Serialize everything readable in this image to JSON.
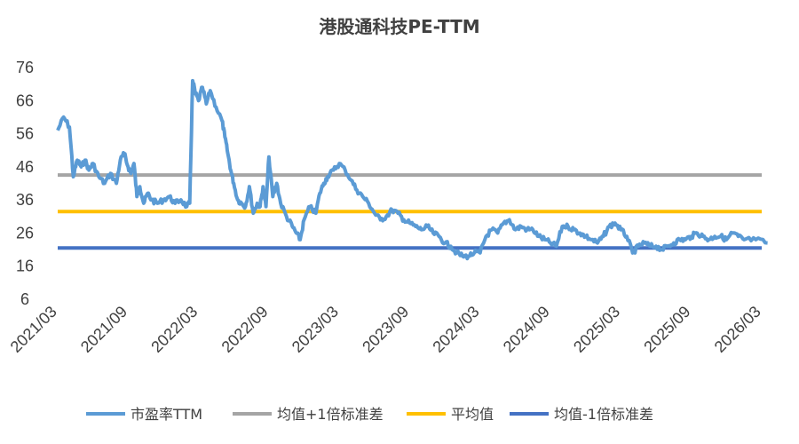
{
  "chart_data": {
    "type": "line",
    "title": "港股通科技PE-TTM",
    "xlabel": "",
    "ylabel": "",
    "ylim": [
      6,
      76
    ],
    "yticks": [
      "6",
      "16",
      "26",
      "36",
      "46",
      "56",
      "66",
      "76"
    ],
    "xlim": [
      "2021/03",
      "2026/03"
    ],
    "xticks": [
      "2021/03",
      "2021/09",
      "2022/03",
      "2022/09",
      "2023/03",
      "2023/09",
      "2024/03",
      "2024/09",
      "2025/03",
      "2025/09",
      "2026/03"
    ],
    "grid": false,
    "legend_position": "bottom",
    "series": [
      {
        "name": "市盈率TTM",
        "color": "#5b9bd5",
        "style": "line",
        "points": [
          [
            "2021/03",
            57
          ],
          [
            "2021/03",
            61
          ],
          [
            "2021/04",
            58
          ],
          [
            "2021/04",
            43
          ],
          [
            "2021/04",
            48
          ],
          [
            "2021/05",
            46
          ],
          [
            "2021/05",
            48
          ],
          [
            "2021/05",
            45
          ],
          [
            "2021/06",
            47
          ],
          [
            "2021/06",
            43
          ],
          [
            "2021/07",
            41
          ],
          [
            "2021/07",
            44
          ],
          [
            "2021/08",
            41
          ],
          [
            "2021/08",
            48
          ],
          [
            "2021/08",
            50
          ],
          [
            "2021/09",
            46
          ],
          [
            "2021/09",
            44
          ],
          [
            "2021/09",
            47
          ],
          [
            "2021/09",
            37
          ],
          [
            "2021/10",
            40
          ],
          [
            "2021/10",
            35
          ],
          [
            "2021/10",
            38
          ],
          [
            "2021/11",
            36
          ],
          [
            "2021/11",
            35
          ],
          [
            "2021/12",
            36
          ],
          [
            "2021/12",
            37
          ],
          [
            "2022/01",
            35
          ],
          [
            "2022/01",
            36
          ],
          [
            "2022/02",
            34
          ],
          [
            "2022/02",
            35
          ],
          [
            "2022/02",
            72
          ],
          [
            "2022/02",
            68
          ],
          [
            "2022/03",
            66
          ],
          [
            "2022/03",
            70
          ],
          [
            "2022/03",
            65
          ],
          [
            "2022/04",
            69
          ],
          [
            "2022/04",
            64
          ],
          [
            "2022/05",
            60
          ],
          [
            "2022/05",
            55
          ],
          [
            "2022/05",
            50
          ],
          [
            "2022/05",
            45
          ],
          [
            "2022/06",
            41
          ],
          [
            "2022/06",
            36
          ],
          [
            "2022/06",
            35
          ],
          [
            "2022/07",
            34
          ],
          [
            "2022/07",
            40
          ],
          [
            "2022/07",
            32
          ],
          [
            "2022/08",
            35
          ],
          [
            "2022/08",
            34
          ],
          [
            "2022/08",
            40
          ],
          [
            "2022/08",
            34
          ],
          [
            "2022/09",
            49
          ],
          [
            "2022/09",
            37
          ],
          [
            "2022/09",
            41
          ],
          [
            "2022/10",
            35
          ],
          [
            "2022/10",
            31
          ],
          [
            "2022/11",
            28
          ],
          [
            "2022/11",
            26
          ],
          [
            "2022/11",
            24
          ],
          [
            "2022/12",
            30
          ],
          [
            "2022/12",
            34
          ],
          [
            "2023/01",
            32
          ],
          [
            "2023/01",
            38
          ],
          [
            "2023/01",
            41
          ],
          [
            "2023/02",
            43
          ],
          [
            "2023/02",
            45
          ],
          [
            "2023/03",
            47
          ],
          [
            "2023/03",
            45
          ],
          [
            "2023/04",
            42
          ],
          [
            "2023/04",
            39
          ],
          [
            "2023/05",
            37
          ],
          [
            "2023/05",
            35
          ],
          [
            "2023/06",
            32
          ],
          [
            "2023/06",
            30
          ],
          [
            "2023/07",
            31
          ],
          [
            "2023/07",
            33
          ],
          [
            "2023/08",
            32
          ],
          [
            "2023/08",
            30
          ],
          [
            "2023/09",
            29
          ],
          [
            "2023/09",
            28
          ],
          [
            "2023/10",
            27
          ],
          [
            "2023/10",
            28
          ],
          [
            "2023/11",
            26
          ],
          [
            "2023/11",
            25
          ],
          [
            "2023/12",
            23
          ],
          [
            "2023/12",
            22
          ],
          [
            "2024/01",
            20
          ],
          [
            "2024/01",
            19
          ],
          [
            "2024/02",
            19
          ],
          [
            "2024/02",
            20
          ],
          [
            "2024/03",
            20
          ],
          [
            "2024/03",
            25
          ],
          [
            "2024/04",
            27
          ],
          [
            "2024/04",
            26
          ],
          [
            "2024/05",
            29
          ],
          [
            "2024/05",
            30
          ],
          [
            "2024/06",
            27
          ],
          [
            "2024/06",
            28
          ],
          [
            "2024/07",
            27
          ],
          [
            "2024/07",
            27
          ],
          [
            "2024/08",
            25
          ],
          [
            "2024/08",
            24
          ],
          [
            "2024/09",
            23
          ],
          [
            "2024/09",
            22
          ],
          [
            "2024/10",
            28
          ],
          [
            "2024/10",
            28
          ],
          [
            "2024/11",
            27
          ],
          [
            "2024/11",
            26
          ],
          [
            "2024/12",
            25
          ],
          [
            "2024/12",
            24
          ],
          [
            "2025/01",
            23
          ],
          [
            "2025/01",
            25
          ],
          [
            "2025/02",
            28
          ],
          [
            "2025/02",
            29
          ],
          [
            "2025/03",
            27
          ],
          [
            "2025/03",
            25
          ],
          [
            "2025/04",
            20
          ],
          [
            "2025/04",
            22
          ],
          [
            "2025/05",
            23
          ],
          [
            "2025/05",
            22
          ],
          [
            "2025/06",
            22
          ],
          [
            "2025/06",
            21
          ],
          [
            "2025/07",
            22
          ],
          [
            "2025/07",
            23
          ],
          [
            "2025/08",
            24
          ],
          [
            "2025/08",
            24
          ],
          [
            "2025/09",
            25
          ],
          [
            "2025/09",
            26
          ],
          [
            "2025/10",
            25
          ],
          [
            "2025/10",
            24
          ],
          [
            "2025/11",
            25
          ],
          [
            "2025/11",
            25
          ],
          [
            "2025/12",
            24
          ],
          [
            "2025/12",
            26
          ],
          [
            "2026/01",
            25
          ],
          [
            "2026/01",
            24
          ],
          [
            "2026/02",
            24
          ],
          [
            "2026/03",
            23
          ]
        ]
      },
      {
        "name": "均值+1倍标准差",
        "color": "#a5a5a5",
        "style": "hline",
        "value": 43.5
      },
      {
        "name": "平均值",
        "color": "#ffc000",
        "style": "hline",
        "value": 32.5
      },
      {
        "name": "均值-1倍标准差",
        "color": "#4472c4",
        "style": "hline",
        "value": 21.5
      }
    ]
  }
}
